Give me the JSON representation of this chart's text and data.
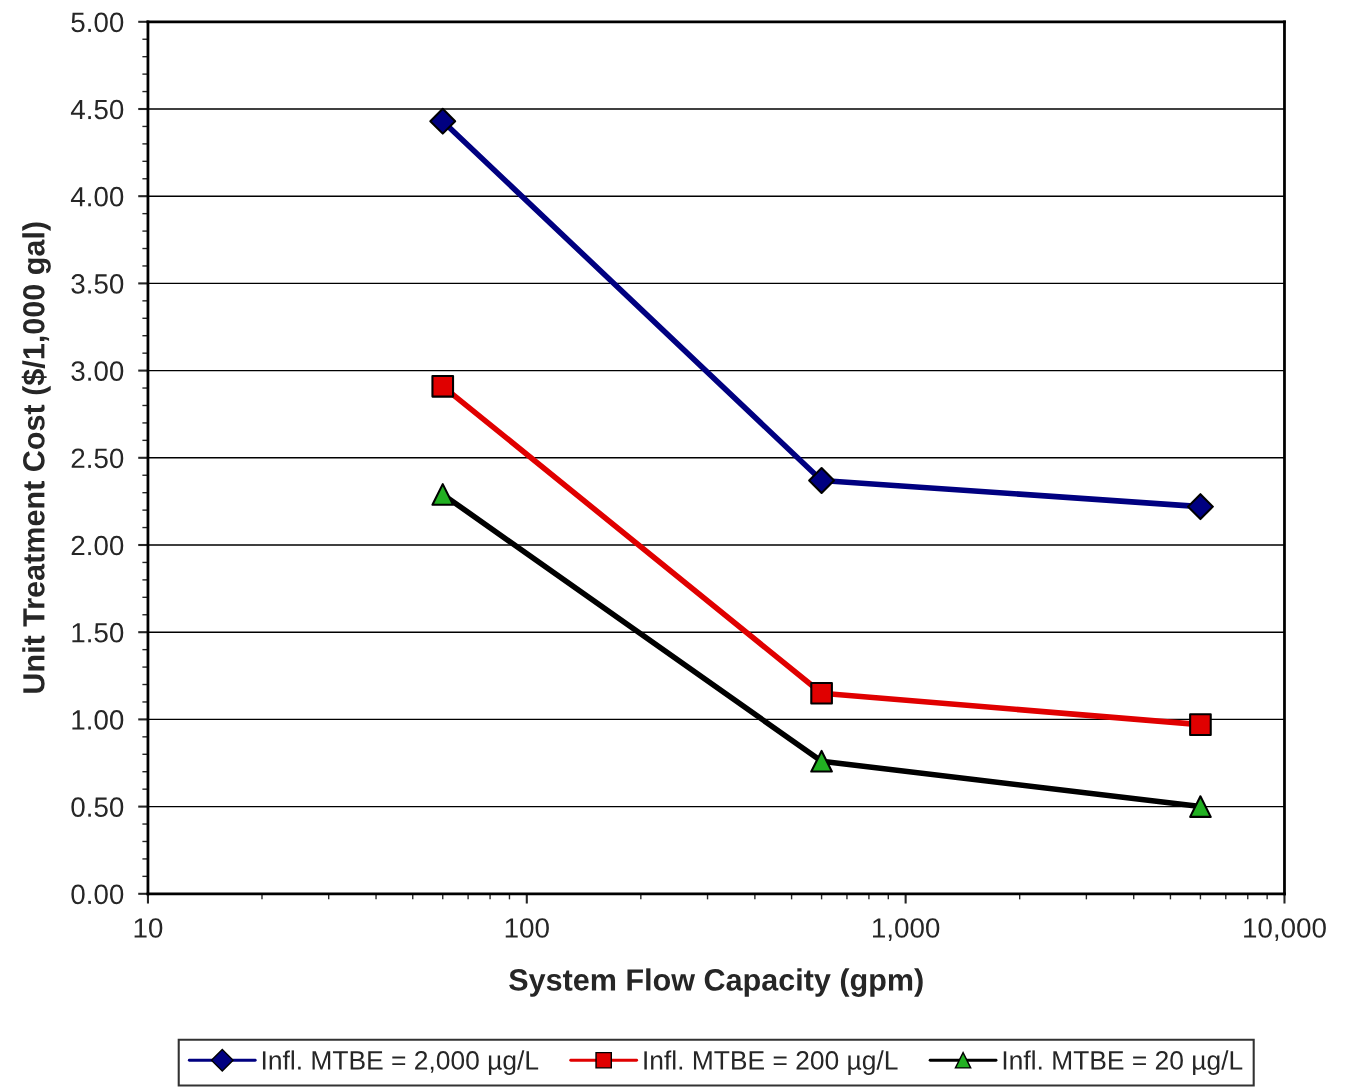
{
  "chart_data": {
    "type": "line",
    "xlabel": "System Flow Capacity (gpm)",
    "ylabel": "Unit Treatment Cost ($/1,000 gal)",
    "x": [
      60,
      600,
      6000
    ],
    "series": [
      {
        "name": "Infl. MTBE = 2,000 µg/L",
        "color": "#000080",
        "colors": [
          "#000080",
          "#000080",
          "#000080"
        ],
        "marker": "diamond",
        "values": [
          4.43,
          2.37,
          2.22
        ]
      },
      {
        "name": "Infl. MTBE = 200 µg/L",
        "color": "#e00000",
        "colors": [
          "#e00000",
          "#e00000",
          "#e00000"
        ],
        "marker": "square",
        "values": [
          2.91,
          1.15,
          0.97
        ]
      },
      {
        "name": "Infl. MTBE = 20 µg/L",
        "color": "#000000",
        "colors": [
          "#22b022",
          "#22b022",
          "#22b022"
        ],
        "marker": "triangle",
        "values": [
          2.29,
          0.76,
          0.5
        ]
      }
    ],
    "log": "x",
    "xlim": [
      10,
      10000
    ],
    "xticks": [
      10,
      100,
      {
        "value": 1000,
        "label": "1,000"
      },
      {
        "value": 10000,
        "label": "10,000"
      }
    ],
    "ylim": [
      0,
      5
    ],
    "yticks": [
      {
        "value": 0,
        "label": "0.00"
      },
      {
        "value": 0.5,
        "label": "0.50"
      },
      {
        "value": 1,
        "label": "1.00"
      },
      {
        "value": 1.5,
        "label": "1.50"
      },
      {
        "value": 2,
        "label": "2.00"
      },
      {
        "value": 2.5,
        "label": "2.50"
      },
      {
        "value": 3,
        "label": "3.00"
      },
      {
        "value": 3.5,
        "label": "3.50"
      },
      {
        "value": 4,
        "label": "4.00"
      },
      {
        "value": 4.5,
        "label": "4.50"
      },
      {
        "value": 5,
        "label": "5.00"
      }
    ],
    "grid": "y",
    "legend": "bottom",
    "line_style": "solid"
  }
}
